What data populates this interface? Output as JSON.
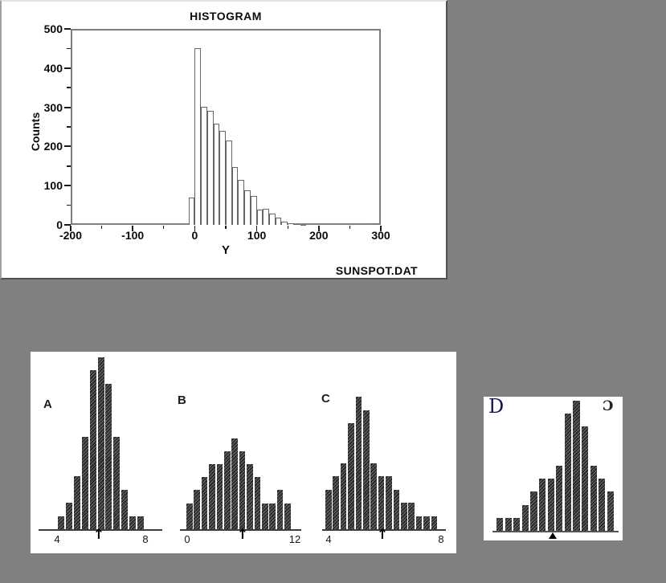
{
  "colors": {
    "background": "#808080",
    "panel": "#ffffff",
    "ink": "#111111",
    "frame": "#7e7e7e",
    "main_bar_fill": "#ffffff",
    "main_bar_edge": "#666666",
    "mini_bar_fill": "#161616"
  },
  "chart_data": [
    {
      "id": "main",
      "type": "bar",
      "title": "HISTOGRAM",
      "xlabel": "Y",
      "ylabel": "Counts",
      "annotation": "SUNSPOT.DAT",
      "xlim": [
        -200,
        300
      ],
      "ylim": [
        0,
        500
      ],
      "x_ticks": [
        -200,
        -100,
        0,
        100,
        200,
        300
      ],
      "x_tick_labels": [
        "-200",
        "-100",
        "0",
        "100",
        "200",
        "300"
      ],
      "y_ticks": [
        0,
        100,
        200,
        300,
        400,
        500
      ],
      "y_tick_labels": [
        "0",
        "100",
        "200",
        "300",
        "400",
        "500"
      ],
      "minor_tick_step": 50,
      "bin_width": 10,
      "bin_starts": [
        -10,
        0,
        10,
        20,
        30,
        40,
        50,
        60,
        70,
        80,
        90,
        100,
        110,
        120,
        130,
        140,
        150,
        160,
        170
      ],
      "values": [
        70,
        450,
        302,
        290,
        258,
        240,
        215,
        147,
        115,
        88,
        73,
        38,
        42,
        28,
        18,
        8,
        4,
        2,
        1
      ],
      "legend": "none",
      "grid": "off"
    },
    {
      "id": "A",
      "type": "bar",
      "label": "A",
      "values": [
        1,
        2,
        4,
        7,
        12,
        13,
        11,
        7,
        3,
        1,
        1
      ],
      "x_axis_left_label": "4",
      "x_axis_right_label": "8",
      "marker_icon": "up-arrow",
      "marker_glyph": "↑"
    },
    {
      "id": "B",
      "type": "bar",
      "label": "B",
      "values": [
        2,
        3,
        4,
        5,
        5,
        6,
        7,
        6,
        5,
        4,
        2,
        2,
        3,
        2
      ],
      "x_axis_left_label": "0",
      "x_axis_right_label": "12",
      "marker_icon": "up-arrow",
      "marker_glyph": "↑"
    },
    {
      "id": "C",
      "type": "bar",
      "label": "C",
      "values": [
        3,
        4,
        5,
        8,
        10,
        9,
        5,
        4,
        4,
        3,
        2,
        2,
        1,
        1,
        1
      ],
      "x_axis_left_label": "4",
      "x_axis_right_label": "8",
      "marker_icon": "up-arrow",
      "marker_glyph": "↑"
    },
    {
      "id": "D",
      "type": "bar",
      "label": "D",
      "corner_mark": "Ɔ",
      "values": [
        1,
        1,
        1,
        2,
        3,
        4,
        4,
        5,
        9,
        10,
        8,
        5,
        4,
        3
      ],
      "marker_icon": "filled-up-arrow"
    }
  ]
}
